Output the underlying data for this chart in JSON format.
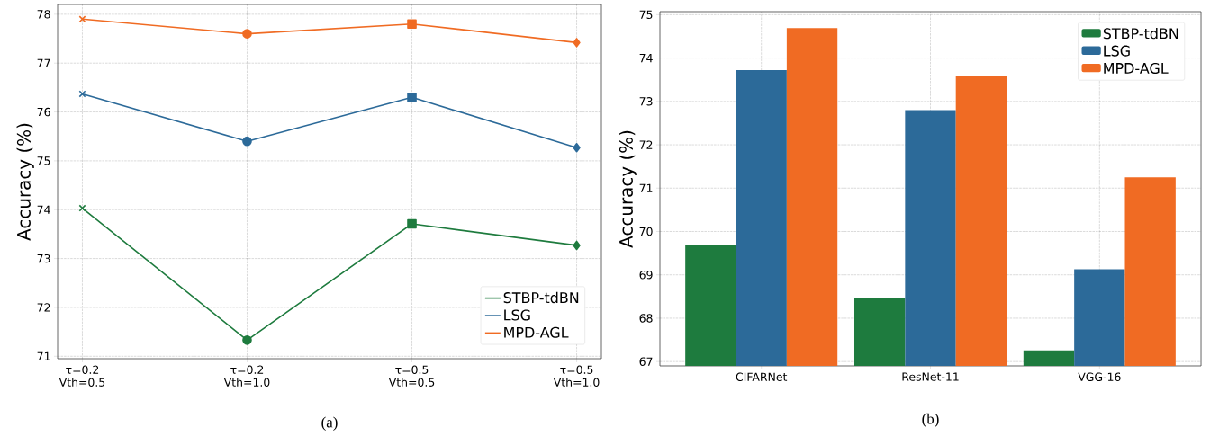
{
  "chart_data": [
    {
      "type": "line",
      "title": "(a)",
      "ylabel": "Accuracy (%)",
      "categories": [
        "τ=0.2 Vth=0.5",
        "τ=0.2 Vth=1.0",
        "τ=0.5 Vth=0.5",
        "τ=0.5 Vth=1.0"
      ],
      "ylim": [
        70.95,
        78.2
      ],
      "yticks": [
        71,
        72,
        73,
        74,
        75,
        76,
        77,
        78
      ],
      "grid": true,
      "legend": "bottom right",
      "marker": [
        "cross",
        "circle",
        "square",
        "diamond"
      ],
      "series": [
        {
          "name": "STBP-tdBN",
          "color": "#1e7b3e",
          "values": [
            74.03,
            71.33,
            73.71,
            73.27
          ]
        },
        {
          "name": "LSG",
          "color": "#2c6a99",
          "values": [
            76.37,
            75.4,
            76.3,
            75.27
          ]
        },
        {
          "name": "MPD-AGL",
          "color": "#f06b23",
          "values": [
            77.9,
            77.6,
            77.8,
            77.42
          ]
        }
      ]
    },
    {
      "type": "bar",
      "title": "(b)",
      "ylabel": "Accuracy (%)",
      "categories": [
        "CIFARNet",
        "ResNet-11",
        "VGG-16"
      ],
      "ylim": [
        66.9,
        75.07
      ],
      "yticks": [
        67,
        68,
        69,
        70,
        71,
        72,
        73,
        74,
        75
      ],
      "grid": true,
      "legend": "top right",
      "series": [
        {
          "name": "STBP-tdBN",
          "color": "#1e7b3e",
          "values": [
            69.68,
            68.46,
            67.26
          ]
        },
        {
          "name": "LSG",
          "color": "#2c6a99",
          "values": [
            73.72,
            72.8,
            69.13
          ]
        },
        {
          "name": "MPD-AGL",
          "color": "#f06b23",
          "values": [
            74.69,
            73.59,
            71.25
          ]
        }
      ]
    }
  ]
}
